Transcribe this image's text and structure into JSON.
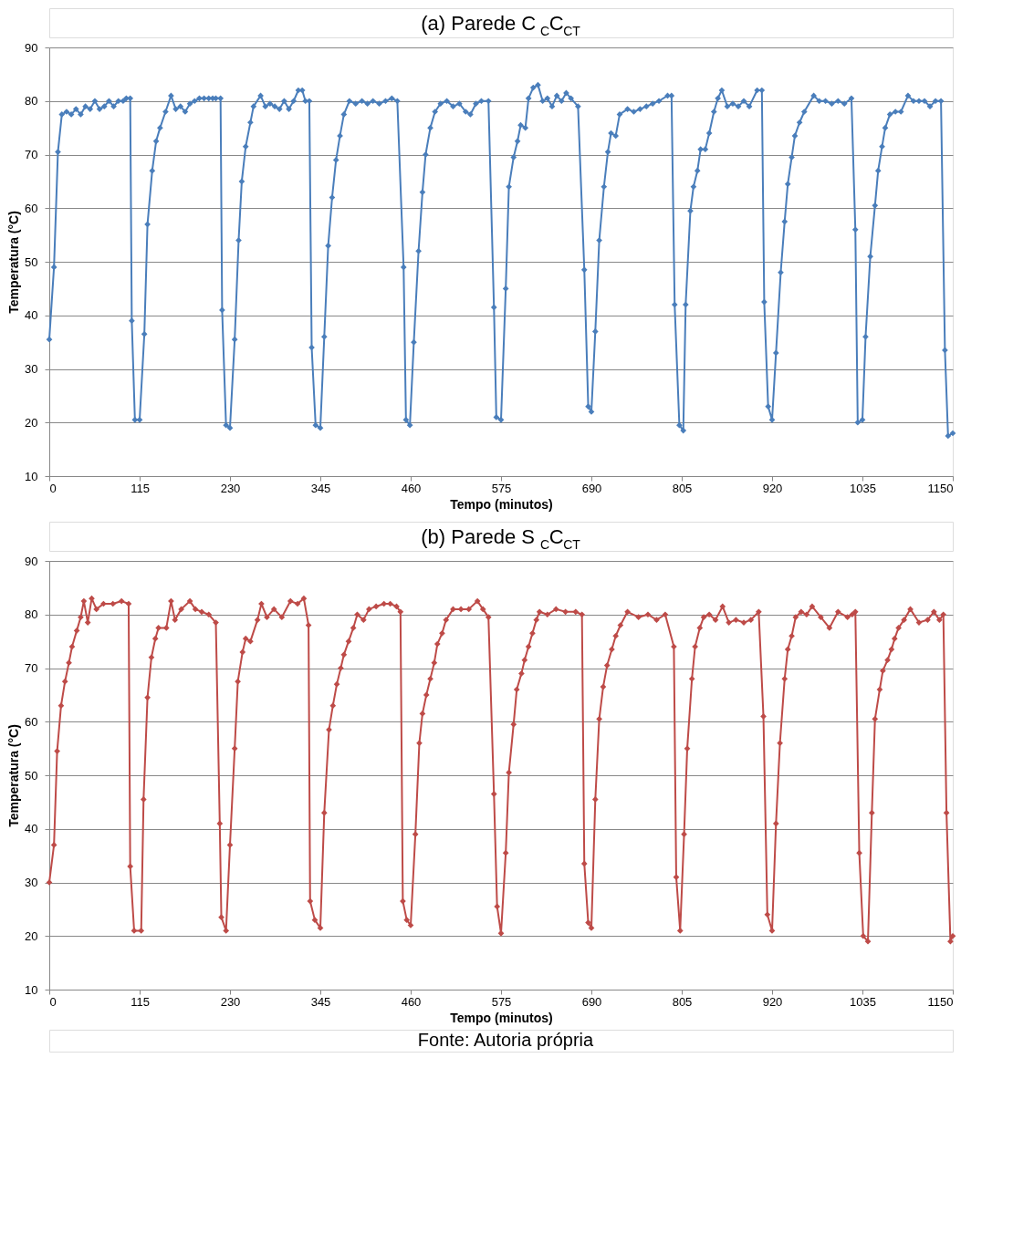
{
  "chart_data": [
    {
      "type": "line",
      "title": "(a) Parede C$_{C}$C$_{CT}$",
      "xlabel": "Tempo (minutos)",
      "ylabel": "Temperatura (°C)",
      "xlim": [
        0,
        1150
      ],
      "xticks": [
        0,
        115,
        230,
        345,
        460,
        575,
        690,
        805,
        920,
        1035,
        1150
      ],
      "ylim": [
        10,
        90
      ],
      "yticks": [
        10,
        20,
        30,
        40,
        50,
        60,
        70,
        80,
        90
      ],
      "grid": "y",
      "marker": "diamond",
      "line_style": "solid",
      "series": [
        {
          "color": "#4a7ebb",
          "x": [
            0,
            6,
            11,
            16,
            22,
            28,
            34,
            40,
            46,
            52,
            58,
            64,
            70,
            76,
            82,
            88,
            94,
            98,
            103,
            105,
            109,
            115,
            121,
            125,
            131,
            136,
            141,
            148,
            155,
            161,
            167,
            173,
            179,
            185,
            191,
            197,
            203,
            208,
            212,
            218,
            220,
            225,
            230,
            236,
            241,
            245,
            250,
            256,
            260,
            269,
            275,
            281,
            287,
            293,
            299,
            305,
            311,
            317,
            322,
            326,
            331,
            334,
            339,
            345,
            350,
            355,
            360,
            365,
            370,
            375,
            382,
            390,
            398,
            405,
            412,
            420,
            428,
            436,
            443,
            451,
            454,
            459,
            464,
            470,
            475,
            479,
            485,
            491,
            498,
            506,
            514,
            522,
            530,
            536,
            543,
            550,
            559,
            566,
            569,
            575,
            581,
            585,
            591,
            596,
            600,
            606,
            610,
            616,
            622,
            628,
            634,
            640,
            646,
            652,
            658,
            664,
            673,
            681,
            686,
            690,
            695,
            700,
            706,
            711,
            715,
            721,
            726,
            736,
            744,
            752,
            760,
            768,
            776,
            787,
            792,
            796,
            802,
            807,
            810,
            816,
            820,
            825,
            829,
            835,
            840,
            846,
            851,
            856,
            863,
            870,
            877,
            884,
            891,
            901,
            907,
            910,
            915,
            920,
            925,
            931,
            936,
            940,
            945,
            949,
            955,
            961,
            973,
            980,
            988,
            996,
            1004,
            1012,
            1021,
            1026,
            1029,
            1035,
            1039,
            1045,
            1051,
            1055,
            1060,
            1064,
            1070,
            1077,
            1084,
            1093,
            1100,
            1107,
            1114,
            1121,
            1128,
            1135,
            1140,
            1144,
            1150
          ],
          "values": [
            35.5,
            49,
            70.5,
            77.5,
            78,
            77.5,
            78.5,
            77.5,
            79,
            78.5,
            80,
            78.5,
            79,
            80,
            79,
            80,
            80,
            80.5,
            80.5,
            39,
            20.5,
            20.5,
            36.5,
            57,
            67,
            72.5,
            75,
            78,
            81,
            78.5,
            79,
            78,
            79.5,
            80,
            80.5,
            80.5,
            80.5,
            80.5,
            80.5,
            80.5,
            41,
            19.5,
            19,
            35.5,
            54,
            65,
            71.5,
            76,
            79,
            81,
            79,
            79.5,
            79,
            78.5,
            80,
            78.5,
            80,
            82,
            82,
            80,
            80,
            34,
            19.5,
            19,
            36,
            53,
            62,
            69,
            73.5,
            77.5,
            80,
            79.5,
            80,
            79.5,
            80,
            79.5,
            80,
            80.5,
            80,
            49,
            20.5,
            19.5,
            35,
            52,
            63,
            70,
            75,
            78,
            79.5,
            80,
            79,
            79.5,
            78,
            77.5,
            79.5,
            80,
            80,
            41.5,
            21,
            20.5,
            45,
            64,
            69.5,
            72.5,
            75.5,
            75,
            80.5,
            82.5,
            83,
            80,
            80.5,
            79,
            81,
            80,
            81.5,
            80.5,
            79,
            48.5,
            23,
            22,
            37,
            54,
            64,
            70.5,
            74,
            73.5,
            77.5,
            78.5,
            78,
            78.5,
            79,
            79.5,
            80,
            81,
            81,
            42,
            19.5,
            18.5,
            42,
            59.5,
            64,
            67,
            71,
            71,
            74,
            78,
            80.5,
            82,
            79,
            79.5,
            79,
            80,
            79,
            82,
            82,
            42.5,
            23,
            20.5,
            33,
            48,
            57.5,
            64.5,
            69.5,
            73.5,
            76,
            78,
            81,
            80,
            80,
            79.5,
            80,
            79.5,
            80.5,
            56,
            20,
            20.5,
            36,
            51,
            60.5,
            67,
            71.5,
            75,
            77.5,
            78,
            78,
            81,
            80,
            80,
            80,
            79,
            80,
            80,
            33.5,
            17.5,
            18
          ]
        }
      ]
    },
    {
      "type": "line",
      "title": "(b) Parede S$_{C}$C$_{CT}$",
      "xlabel": "Tempo (minutos)",
      "ylabel": "Temperatura (°C)",
      "xlim": [
        0,
        1150
      ],
      "xticks": [
        0,
        115,
        230,
        345,
        460,
        575,
        690,
        805,
        920,
        1035,
        1150
      ],
      "ylim": [
        10,
        90
      ],
      "yticks": [
        10,
        20,
        30,
        40,
        50,
        60,
        70,
        80,
        90
      ],
      "grid": "y",
      "marker": "diamond",
      "line_style": "solid",
      "annotations": [
        "Fonte: Autoria própria"
      ],
      "series": [
        {
          "color": "#be4b48",
          "x": [
            0,
            6,
            10,
            15,
            20,
            25,
            29,
            35,
            40,
            44,
            49,
            54,
            60,
            69,
            81,
            92,
            101,
            103,
            108,
            117,
            120,
            125,
            130,
            135,
            139,
            149,
            155,
            160,
            168,
            179,
            186,
            194,
            203,
            212,
            217,
            219,
            225,
            230,
            236,
            240,
            246,
            250,
            256,
            265,
            270,
            277,
            286,
            296,
            307,
            316,
            324,
            330,
            332,
            338,
            345,
            350,
            356,
            361,
            366,
            371,
            375,
            381,
            387,
            392,
            400,
            407,
            416,
            426,
            434,
            442,
            447,
            450,
            455,
            460,
            466,
            471,
            475,
            480,
            485,
            490,
            494,
            500,
            505,
            514,
            524,
            534,
            545,
            552,
            559,
            566,
            570,
            575,
            581,
            585,
            591,
            595,
            601,
            605,
            610,
            615,
            620,
            624,
            634,
            645,
            657,
            670,
            678,
            681,
            686,
            690,
            695,
            700,
            705,
            710,
            716,
            721,
            727,
            736,
            750,
            762,
            773,
            784,
            795,
            798,
            803,
            808,
            812,
            818,
            822,
            828,
            833,
            840,
            848,
            857,
            865,
            874,
            884,
            893,
            903,
            909,
            914,
            920,
            925,
            930,
            936,
            940,
            945,
            950,
            957,
            964,
            971,
            982,
            993,
            1004,
            1016,
            1022,
            1026,
            1031,
            1036,
            1042,
            1047,
            1051,
            1057,
            1061,
            1067,
            1072,
            1076,
            1081,
            1088,
            1096,
            1107,
            1118,
            1126,
            1133,
            1138,
            1142,
            1147,
            1150
          ],
          "values": [
            30,
            37,
            54.5,
            63,
            67.5,
            71,
            74,
            77,
            79.5,
            82.5,
            78.5,
            83,
            81,
            82,
            82,
            82.5,
            82,
            33,
            21,
            21,
            45.5,
            64.5,
            72,
            75.5,
            77.5,
            77.5,
            82.5,
            79,
            81,
            82.5,
            81,
            80.5,
            80,
            78.5,
            41,
            23.5,
            21,
            37,
            55,
            67.5,
            73,
            75.5,
            75,
            79,
            82,
            79.5,
            81,
            79.5,
            82.5,
            82,
            83,
            78,
            26.5,
            23,
            21.5,
            43,
            58.5,
            63,
            67,
            70,
            72.5,
            75,
            77.5,
            80,
            79,
            81,
            81.5,
            82,
            82,
            81.5,
            80.5,
            26.5,
            23,
            22,
            39,
            56,
            61.5,
            65,
            68,
            71,
            74.5,
            76.5,
            79,
            81,
            81,
            81,
            82.5,
            81,
            79.5,
            46.5,
            25.5,
            20.5,
            35.5,
            50.5,
            59.5,
            66,
            69,
            71.5,
            74,
            76.5,
            79,
            80.5,
            80,
            81,
            80.5,
            80.5,
            80,
            33.5,
            22.5,
            21.5,
            45.5,
            60.5,
            66.5,
            70.5,
            73.5,
            76,
            78,
            80.5,
            79.5,
            80,
            79,
            80,
            74,
            31,
            21,
            39,
            55,
            68,
            74,
            77.5,
            79.5,
            80,
            79,
            81.5,
            78.5,
            79,
            78.5,
            79,
            80.5,
            61,
            24,
            21,
            41,
            56,
            68,
            73.5,
            76,
            79.5,
            80.5,
            80,
            81.5,
            79.5,
            77.5,
            80.5,
            79.5,
            80,
            80.5,
            35.5,
            20,
            19,
            43,
            60.5,
            66,
            69.5,
            71.5,
            73.5,
            75.5,
            77.5,
            79,
            81,
            78.5,
            79,
            80.5,
            79,
            80,
            43,
            19,
            20
          ]
        }
      ]
    }
  ]
}
